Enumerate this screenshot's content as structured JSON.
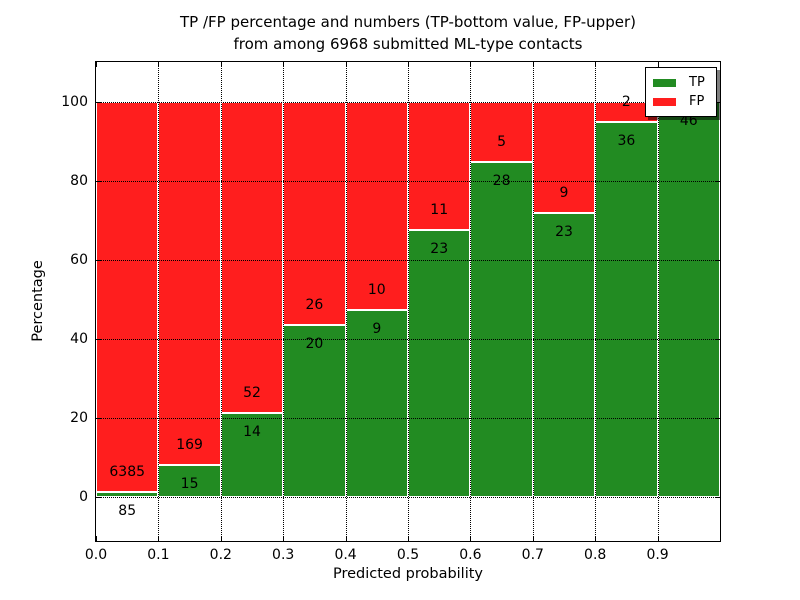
{
  "title": {
    "line1": "TP /FP percentage and numbers (TP-bottom value, FP-upper)",
    "line2": "from among 6968 submitted ML-type contacts"
  },
  "chart_data": {
    "type": "bar",
    "stacked": true,
    "normalized_to_percent": true,
    "total_contacts": 6968,
    "bin_edges": [
      0.0,
      0.1,
      0.2,
      0.3,
      0.4,
      0.5,
      0.6,
      0.7,
      0.8,
      0.9,
      1.0
    ],
    "categories": [
      "0.0-0.1",
      "0.1-0.2",
      "0.2-0.3",
      "0.3-0.4",
      "0.4-0.5",
      "0.5-0.6",
      "0.6-0.7",
      "0.7-0.8",
      "0.8-0.9",
      "0.9-1.0"
    ],
    "series": [
      {
        "name": "TP",
        "color": "#228b22",
        "counts": [
          85,
          15,
          14,
          20,
          9,
          23,
          28,
          23,
          36,
          46
        ]
      },
      {
        "name": "FP",
        "color": "#ff1e1e",
        "counts": [
          6385,
          169,
          52,
          26,
          10,
          11,
          5,
          9,
          2,
          0
        ]
      }
    ],
    "tp_percent": [
      1.3,
      8.2,
      21.2,
      43.5,
      47.4,
      67.6,
      84.8,
      71.9,
      94.7,
      100.0
    ],
    "xlabel": "Predicted probability",
    "ylabel": "Percentage",
    "xtick_labels": [
      "0.0",
      "0.1",
      "0.2",
      "0.3",
      "0.4",
      "0.5",
      "0.6",
      "0.7",
      "0.8",
      "0.9"
    ],
    "ytick_values": [
      0,
      20,
      40,
      60,
      80,
      100
    ],
    "xlim": [
      0.0,
      1.0
    ],
    "ylim": [
      -11,
      110
    ],
    "grid": "dotted black, horizontal and vertical",
    "bar_edge_color": "#ffffff",
    "legend": {
      "position": "upper right",
      "entries": [
        {
          "label": "TP",
          "color": "#228b22"
        },
        {
          "label": "FP",
          "color": "#ff1e1e"
        }
      ]
    }
  }
}
